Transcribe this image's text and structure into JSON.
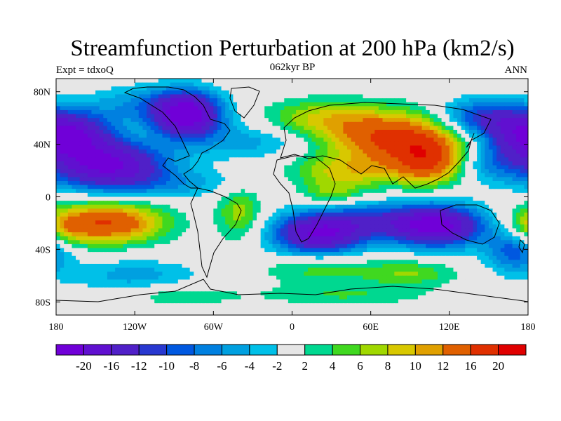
{
  "header": {
    "title": "Streamfunction Perturbation at 200 hPa (km2/s)",
    "left_label": "Expt = tdxoQ",
    "center_label": "062kyr BP",
    "right_label": "ANN"
  },
  "axes": {
    "lon_ticks": [
      {
        "lon": -180,
        "label": "180"
      },
      {
        "lon": -120,
        "label": "120W"
      },
      {
        "lon": -60,
        "label": "60W"
      },
      {
        "lon": 0,
        "label": "0"
      },
      {
        "lon": 60,
        "label": "60E"
      },
      {
        "lon": 120,
        "label": "120E"
      },
      {
        "lon": 180,
        "label": "180"
      }
    ],
    "lat_ticks": [
      {
        "lat": 80,
        "label": "80N"
      },
      {
        "lat": 40,
        "label": "40N"
      },
      {
        "lat": 0,
        "label": "0"
      },
      {
        "lat": -40,
        "label": "40S"
      },
      {
        "lat": -80,
        "label": "80S"
      }
    ],
    "lon_range": [
      -180,
      180
    ],
    "lat_range": [
      -90,
      90
    ]
  },
  "colorbar": {
    "labels": [
      "-20",
      "-16",
      "-12",
      "-10",
      "-8",
      "-6",
      "-4",
      "-2",
      "2",
      "4",
      "6",
      "8",
      "10",
      "12",
      "16",
      "20"
    ],
    "colors": [
      "#7000d8",
      "#6010d0",
      "#5020c8",
      "#2838d0",
      "#0058e0",
      "#0080e0",
      "#00a0e0",
      "#00c0e8",
      "#e6e6e6",
      "#00d890",
      "#40d820",
      "#a0d800",
      "#d8c800",
      "#e0a000",
      "#e06000",
      "#e03000",
      "#e00000"
    ]
  },
  "field": {
    "units": "km2/s",
    "blobs": [
      {
        "lon": -80,
        "lat": 62,
        "amp": -22,
        "slon": 18,
        "slat": 12
      },
      {
        "lon": -140,
        "lat": 25,
        "amp": -20,
        "slon": 30,
        "slat": 12
      },
      {
        "lon": -165,
        "lat": 50,
        "amp": -8,
        "slon": 22,
        "slat": 12
      },
      {
        "lon": -110,
        "lat": 70,
        "amp": -6,
        "slon": 30,
        "slat": 10
      },
      {
        "lon": 180,
        "lat": 45,
        "amp": -14,
        "slon": 25,
        "slat": 12
      },
      {
        "lon": -140,
        "lat": -20,
        "amp": 16,
        "slon": 30,
        "slat": 11
      },
      {
        "lon": -175,
        "lat": -25,
        "amp": 6,
        "slon": 14,
        "slat": 10
      },
      {
        "lon": -40,
        "lat": -12,
        "amp": 7,
        "slon": 12,
        "slat": 15
      },
      {
        "lon": -30,
        "lat": 42,
        "amp": -5,
        "slon": 35,
        "slat": 10
      },
      {
        "lon": 20,
        "lat": 60,
        "amp": 7,
        "slon": 30,
        "slat": 10
      },
      {
        "lon": 80,
        "lat": 45,
        "amp": 17,
        "slon": 38,
        "slat": 14
      },
      {
        "lon": 105,
        "lat": 25,
        "amp": 13,
        "slon": 20,
        "slat": 12
      },
      {
        "lon": 40,
        "lat": 18,
        "amp": 8,
        "slon": 30,
        "slat": 10
      },
      {
        "lon": 20,
        "lat": -28,
        "amp": -20,
        "slon": 24,
        "slat": 11
      },
      {
        "lon": 110,
        "lat": -22,
        "amp": -22,
        "slon": 25,
        "slat": 11
      },
      {
        "lon": 60,
        "lat": -18,
        "amp": -8,
        "slon": 25,
        "slat": 10
      },
      {
        "lon": 145,
        "lat": 60,
        "amp": -12,
        "slon": 25,
        "slat": 10
      },
      {
        "lon": 150,
        "lat": 25,
        "amp": -6,
        "slon": 20,
        "slat": 10
      },
      {
        "lon": 170,
        "lat": -40,
        "amp": -10,
        "slon": 15,
        "slat": 12
      },
      {
        "lon": -120,
        "lat": -60,
        "amp": -5,
        "slon": 35,
        "slat": 9
      },
      {
        "lon": 20,
        "lat": -55,
        "amp": 5,
        "slon": 30,
        "slat": 8
      },
      {
        "lon": 90,
        "lat": -58,
        "amp": 6,
        "slon": 25,
        "slat": 7
      },
      {
        "lon": -85,
        "lat": -75,
        "amp": 4,
        "slon": 30,
        "slat": 6
      },
      {
        "lon": 40,
        "lat": -75,
        "amp": 4,
        "slon": 45,
        "slat": 6
      },
      {
        "lon": -100,
        "lat": 10,
        "amp": -5,
        "slon": 50,
        "slat": 8
      },
      {
        "lon": 30,
        "lat": 2,
        "amp": 5,
        "slon": 15,
        "slat": 6
      }
    ]
  }
}
